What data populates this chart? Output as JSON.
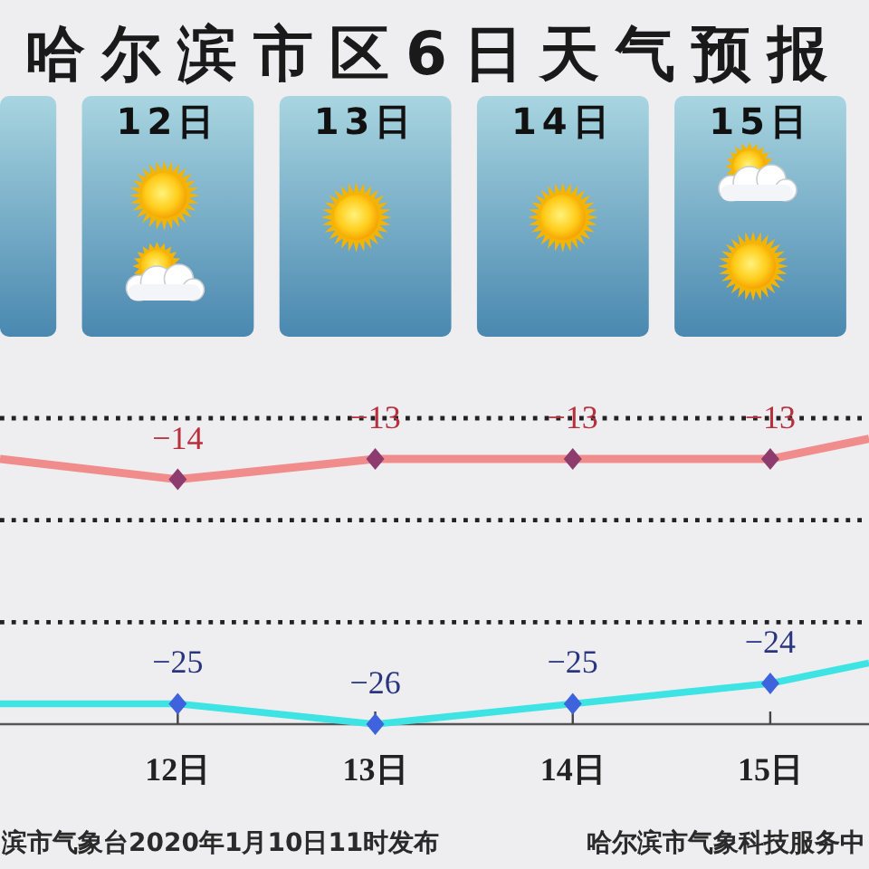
{
  "chart_data": {
    "type": "line",
    "title": "哈尔滨市区6日天气预报",
    "x": [
      11.1,
      12,
      13,
      14,
      15,
      15.5
    ],
    "xlim": [
      11.1,
      15.5
    ],
    "xticks": [
      {
        "value": 12,
        "label": "12日"
      },
      {
        "value": 13,
        "label": "13日"
      },
      {
        "value": 14,
        "label": "14日"
      },
      {
        "value": 15,
        "label": "15日"
      }
    ],
    "x2lim": [
      11.15,
      15.55
    ],
    "x2ticks": [
      {
        "value": 12,
        "label": "12日"
      },
      {
        "value": 13,
        "label": "13日"
      },
      {
        "value": 14,
        "label": "14日"
      },
      {
        "value": 15,
        "label": "15日"
      }
    ],
    "ylim": [
      -26,
      -11
    ],
    "ref_lines": [
      {
        "axis": "y",
        "value": -21,
        "color": "#222222",
        "line_style": "dotted"
      },
      {
        "axis": "y",
        "value": -16,
        "color": "#222222",
        "line_style": "dotted"
      },
      {
        "axis": "y",
        "value": -11,
        "color": "#222222",
        "line_style": "dotted"
      }
    ],
    "tick_labels": "x",
    "marker": "diamond",
    "series": [
      {
        "color": "#f08c8c",
        "colors": [
          null,
          "#8e3b6e",
          "#8e3b6e",
          "#8e3b6e",
          "#8e3b6e",
          null
        ],
        "values": [
          -13,
          -14,
          -13,
          -13,
          -13,
          -12
        ],
        "value_labels": [
          null,
          "−14",
          "−13",
          "−13",
          "−13",
          null
        ]
      },
      {
        "color": "#3ee3e3",
        "colors": [
          null,
          "#3f63dc",
          "#3f63dc",
          "#3f63dc",
          "#3f63dc",
          null
        ],
        "values": [
          -25,
          -25,
          -26,
          -25,
          -24,
          -23
        ],
        "value_labels": [
          null,
          "−25",
          "−26",
          "−25",
          "−24",
          null
        ]
      }
    ],
    "annotations": [
      "滨市气象台2020年1月10日11时发布",
      "哈尔滨市气象科技服务中"
    ]
  }
}
